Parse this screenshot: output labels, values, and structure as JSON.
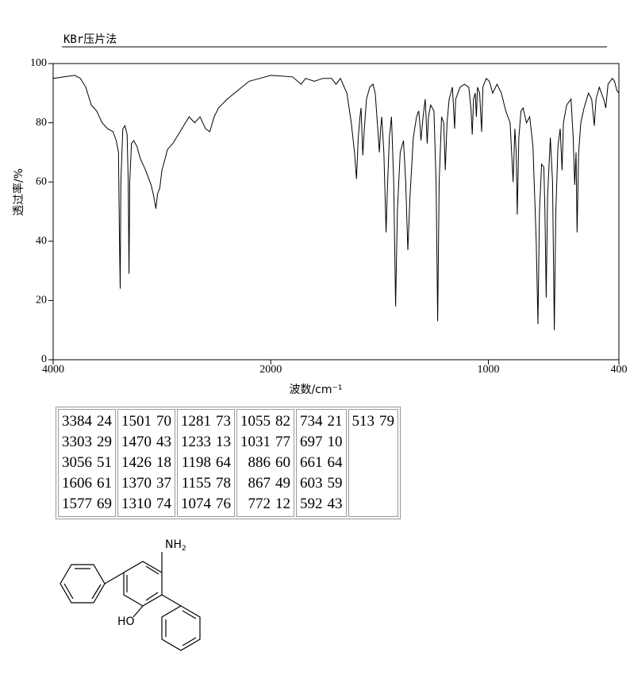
{
  "chart_data": {
    "type": "line",
    "title": "KBr压片法",
    "x_label": "波数/cm⁻¹",
    "y_label": "透过率/%",
    "xlim": [
      4000,
      400
    ],
    "xticks": [
      4000,
      2000,
      1000,
      400
    ],
    "ylim": [
      0,
      100
    ],
    "yticks": [
      0,
      20,
      40,
      60,
      80,
      100
    ],
    "series": [
      {
        "color": "#000000",
        "x": [
          4000,
          3900,
          3800,
          3750,
          3700,
          3650,
          3600,
          3550,
          3500,
          3450,
          3420,
          3400,
          3390,
          3384,
          3378,
          3360,
          3340,
          3320,
          3310,
          3303,
          3296,
          3280,
          3260,
          3230,
          3200,
          3150,
          3100,
          3080,
          3060,
          3056,
          3040,
          3020,
          3000,
          2970,
          2950,
          2900,
          2850,
          2800,
          2750,
          2700,
          2650,
          2600,
          2560,
          2520,
          2480,
          2400,
          2300,
          2200,
          2100,
          2000,
          1900,
          1860,
          1840,
          1800,
          1760,
          1720,
          1700,
          1680,
          1650,
          1630,
          1615,
          1606,
          1598,
          1590,
          1585,
          1580,
          1577,
          1570,
          1560,
          1545,
          1530,
          1520,
          1510,
          1501,
          1495,
          1490,
          1480,
          1470,
          1465,
          1455,
          1445,
          1435,
          1426,
          1418,
          1405,
          1390,
          1380,
          1370,
          1360,
          1345,
          1330,
          1320,
          1315,
          1310,
          1300,
          1290,
          1285,
          1281,
          1275,
          1265,
          1250,
          1240,
          1233,
          1226,
          1215,
          1205,
          1198,
          1190,
          1180,
          1165,
          1160,
          1155,
          1150,
          1130,
          1110,
          1090,
          1080,
          1074,
          1068,
          1060,
          1055,
          1050,
          1040,
          1031,
          1025,
          1010,
          995,
          980,
          960,
          940,
          920,
          900,
          886,
          878,
          872,
          867,
          860,
          850,
          840,
          825,
          810,
          795,
          780,
          772,
          765,
          755,
          745,
          740,
          734,
          728,
          715,
          705,
          697,
          690,
          680,
          670,
          661,
          655,
          640,
          620,
          610,
          603,
          597,
          592,
          585,
          575,
          560,
          540,
          525,
          513,
          505,
          490,
          470,
          460,
          450,
          430,
          420,
          410,
          400
        ],
        "values": [
          95,
          95.5,
          96,
          95,
          92,
          86,
          84,
          80,
          78,
          77,
          74,
          70,
          40,
          24,
          60,
          78,
          79,
          76,
          60,
          29,
          60,
          73,
          74,
          72,
          68,
          64,
          59,
          56,
          52,
          51,
          56,
          58,
          64,
          68,
          71,
          73,
          76,
          79,
          82,
          80,
          82,
          78,
          77,
          82,
          85,
          88,
          91,
          94,
          95,
          96,
          95.5,
          93,
          95,
          94,
          95,
          95,
          93,
          95,
          90,
          80,
          70,
          61,
          75,
          82,
          85,
          75,
          69,
          78,
          88,
          92,
          93,
          90,
          80,
          70,
          78,
          82,
          70,
          43,
          55,
          75,
          82,
          60,
          18,
          50,
          70,
          74,
          60,
          37,
          55,
          75,
          82,
          84,
          80,
          74,
          82,
          88,
          80,
          73,
          82,
          86,
          84,
          60,
          13,
          60,
          82,
          80,
          64,
          80,
          88,
          92,
          85,
          78,
          88,
          92,
          93,
          92,
          85,
          76,
          88,
          90,
          82,
          92,
          90,
          77,
          92,
          95,
          94,
          90,
          93,
          90,
          84,
          80,
          60,
          78,
          70,
          49,
          75,
          84,
          85,
          80,
          82,
          72,
          40,
          12,
          50,
          66,
          65,
          50,
          21,
          55,
          75,
          60,
          10,
          50,
          72,
          78,
          64,
          80,
          86,
          88,
          75,
          59,
          70,
          43,
          70,
          80,
          85,
          90,
          88,
          79,
          88,
          92,
          88,
          85,
          93,
          95,
          94,
          91,
          90
        ]
      }
    ]
  },
  "peak_table": [
    [
      [
        3384,
        24
      ],
      [
        3303,
        29
      ],
      [
        3056,
        51
      ],
      [
        1606,
        61
      ],
      [
        1577,
        69
      ]
    ],
    [
      [
        1501,
        70
      ],
      [
        1470,
        43
      ],
      [
        1426,
        18
      ],
      [
        1370,
        37
      ],
      [
        1310,
        74
      ]
    ],
    [
      [
        1281,
        73
      ],
      [
        1233,
        13
      ],
      [
        1198,
        64
      ],
      [
        1155,
        78
      ],
      [
        1074,
        76
      ]
    ],
    [
      [
        1055,
        82
      ],
      [
        1031,
        77
      ],
      [
        886,
        60
      ],
      [
        867,
        49
      ],
      [
        772,
        12
      ]
    ],
    [
      [
        734,
        21
      ],
      [
        697,
        10
      ],
      [
        661,
        64
      ],
      [
        603,
        59
      ],
      [
        592,
        43
      ]
    ],
    [
      [
        513,
        79
      ]
    ]
  ],
  "structure": {
    "amine": "NH",
    "amine_sub": "2",
    "hydroxyl": "HO"
  }
}
